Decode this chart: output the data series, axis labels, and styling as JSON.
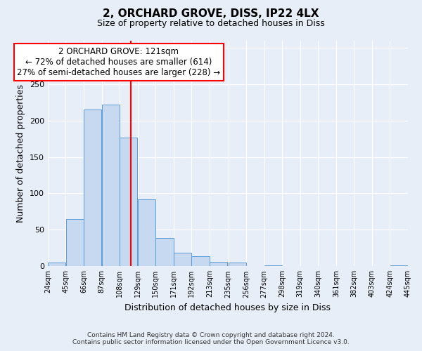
{
  "title": "2, ORCHARD GROVE, DISS, IP22 4LX",
  "subtitle": "Size of property relative to detached houses in Diss",
  "xlabel": "Distribution of detached houses by size in Diss",
  "ylabel": "Number of detached properties",
  "bar_left_edges": [
    24,
    45,
    66,
    87,
    108,
    129,
    150,
    171,
    192,
    213,
    235,
    256,
    277,
    298,
    319,
    340,
    361,
    382,
    403,
    424
  ],
  "bar_heights": [
    5,
    65,
    215,
    222,
    177,
    92,
    39,
    19,
    14,
    6,
    5,
    0,
    1,
    0,
    0,
    0,
    0,
    0,
    0,
    1
  ],
  "bin_width": 21,
  "bar_color": "#c6d9f0",
  "bar_edge_color": "#5b9bd5",
  "vline_x": 121,
  "vline_color": "red",
  "annotation_title": "2 ORCHARD GROVE: 121sqm",
  "annotation_line1": "← 72% of detached houses are smaller (614)",
  "annotation_line2": "27% of semi-detached houses are larger (228) →",
  "annotation_box_color": "red",
  "annotation_bg": "white",
  "xlim": [
    24,
    445
  ],
  "ylim": [
    0,
    310
  ],
  "yticks": [
    0,
    50,
    100,
    150,
    200,
    250,
    300
  ],
  "xtick_labels": [
    "24sqm",
    "45sqm",
    "66sqm",
    "87sqm",
    "108sqm",
    "129sqm",
    "150sqm",
    "171sqm",
    "192sqm",
    "213sqm",
    "235sqm",
    "256sqm",
    "277sqm",
    "298sqm",
    "319sqm",
    "340sqm",
    "361sqm",
    "382sqm",
    "403sqm",
    "424sqm",
    "445sqm"
  ],
  "xtick_positions": [
    24,
    45,
    66,
    87,
    108,
    129,
    150,
    171,
    192,
    213,
    235,
    256,
    277,
    298,
    319,
    340,
    361,
    382,
    403,
    424,
    445
  ],
  "footer_line1": "Contains HM Land Registry data © Crown copyright and database right 2024.",
  "footer_line2": "Contains public sector information licensed under the Open Government Licence v3.0.",
  "background_color": "#e8eef8"
}
